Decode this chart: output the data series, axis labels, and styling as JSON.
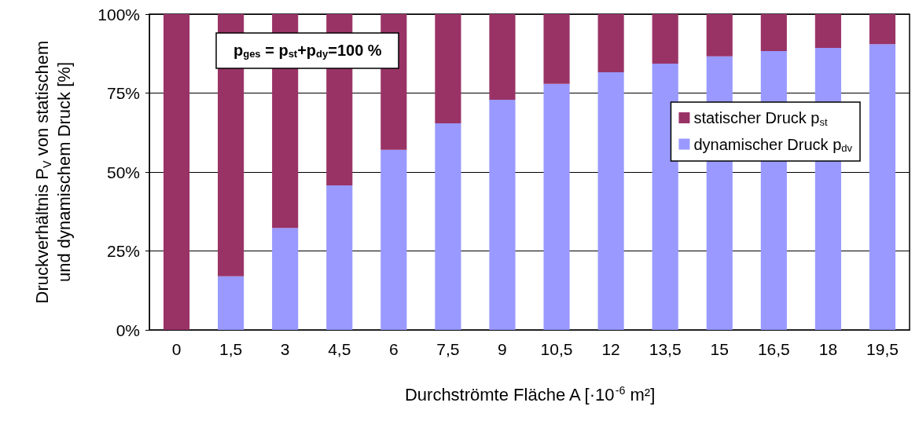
{
  "chart_data": {
    "type": "bar",
    "stacked": true,
    "xlabel": "Durchströmte Fläche A [·10$^{-6}$ m²]",
    "ylabel": "Druckverhältnis P$_{V}$ von statischem und dynamischem Druck [%]",
    "categories": [
      "0",
      "1,5",
      "3",
      "4,5",
      "6",
      "7,5",
      "9",
      "10,5",
      "12",
      "13,5",
      "15",
      "16,5",
      "18",
      "19,5"
    ],
    "series": [
      {
        "name": "dynamischer Druck p$_{dv}$",
        "color": "#9999ff",
        "values": [
          0,
          17,
          32.3,
          45.8,
          57,
          65.4,
          72.9,
          77.9,
          81.6,
          84.3,
          86.6,
          88.3,
          89.3,
          90.5
        ]
      },
      {
        "name": "statischer Druck p$_{st}$",
        "color": "#993366",
        "values": [
          100,
          83,
          67.7,
          54.2,
          43,
          34.6,
          27.1,
          22.1,
          18.4,
          15.7,
          13.4,
          11.7,
          10.7,
          9.5
        ]
      }
    ],
    "ylim": [
      0,
      100
    ],
    "yticks": [
      {
        "value": 0,
        "label": "0%"
      },
      {
        "value": 25,
        "label": "25%"
      },
      {
        "value": 50,
        "label": "50%"
      },
      {
        "value": 75,
        "label": "75%"
      },
      {
        "value": 100,
        "label": "100%"
      }
    ],
    "grid": "y",
    "legend": "right",
    "annotations": [
      "p$_{ges}$ = p$_{st}$+p$_{dy}$=100 %"
    ]
  }
}
